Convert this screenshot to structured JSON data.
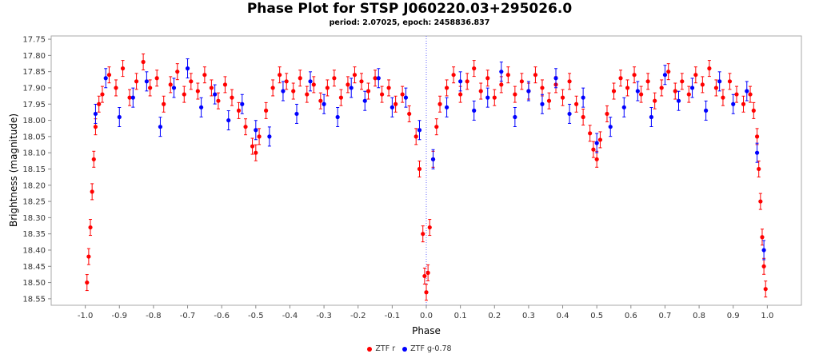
{
  "chart_data": {
    "type": "scatter",
    "title": "Phase Plot for STSP J060220.03+295026.0",
    "subtitle": "period: 2.07025, epoch: 2458836.837",
    "xlabel": "Phase",
    "ylabel": "Brightness (magnitude)",
    "xlim": [
      -1.1,
      1.1
    ],
    "ylim": [
      17.74,
      18.57
    ],
    "y_inverted": true,
    "x_ticks": [
      "-1.0",
      "-0.9",
      "-0.8",
      "-0.7",
      "-0.6",
      "-0.5",
      "-0.4",
      "-0.3",
      "-0.2",
      "-0.1",
      "0.0",
      "0.1",
      "0.2",
      "0.3",
      "0.4",
      "0.5",
      "0.6",
      "0.7",
      "0.8",
      "0.9",
      "1.0"
    ],
    "y_ticks": [
      "17.75",
      "17.80",
      "17.85",
      "17.90",
      "17.95",
      "18.00",
      "18.05",
      "18.10",
      "18.15",
      "18.20",
      "18.25",
      "18.30",
      "18.35",
      "18.40",
      "18.45",
      "18.50",
      "18.55"
    ],
    "marker_line_x": 0.0,
    "grid": false,
    "legend_position": "bottom",
    "series": [
      {
        "name": "ZTF r",
        "color": "#ff0000",
        "points": [
          [
            -0.995,
            18.5
          ],
          [
            -0.99,
            18.42
          ],
          [
            -0.985,
            18.33
          ],
          [
            -0.98,
            18.22
          ],
          [
            -0.975,
            18.12
          ],
          [
            -0.97,
            18.02
          ],
          [
            -0.96,
            17.95
          ],
          [
            -0.95,
            17.92
          ],
          [
            -0.93,
            17.86
          ],
          [
            -0.91,
            17.9
          ],
          [
            -0.89,
            17.84
          ],
          [
            -0.87,
            17.93
          ],
          [
            -0.85,
            17.88
          ],
          [
            -0.83,
            17.82
          ],
          [
            -0.81,
            17.9
          ],
          [
            -0.79,
            17.87
          ],
          [
            -0.77,
            17.95
          ],
          [
            -0.75,
            17.89
          ],
          [
            -0.73,
            17.85
          ],
          [
            -0.71,
            17.92
          ],
          [
            -0.69,
            17.88
          ],
          [
            -0.67,
            17.91
          ],
          [
            -0.65,
            17.86
          ],
          [
            -0.63,
            17.9
          ],
          [
            -0.61,
            17.94
          ],
          [
            -0.59,
            17.89
          ],
          [
            -0.57,
            17.93
          ],
          [
            -0.55,
            17.97
          ],
          [
            -0.53,
            18.02
          ],
          [
            -0.51,
            18.08
          ],
          [
            -0.5,
            18.1
          ],
          [
            -0.49,
            18.05
          ],
          [
            -0.47,
            17.97
          ],
          [
            -0.45,
            17.9
          ],
          [
            -0.43,
            17.86
          ],
          [
            -0.41,
            17.88
          ],
          [
            -0.39,
            17.91
          ],
          [
            -0.37,
            17.87
          ],
          [
            -0.35,
            17.92
          ],
          [
            -0.33,
            17.89
          ],
          [
            -0.31,
            17.94
          ],
          [
            -0.29,
            17.9
          ],
          [
            -0.27,
            17.87
          ],
          [
            -0.25,
            17.93
          ],
          [
            -0.23,
            17.89
          ],
          [
            -0.21,
            17.86
          ],
          [
            -0.19,
            17.88
          ],
          [
            -0.17,
            17.91
          ],
          [
            -0.15,
            17.87
          ],
          [
            -0.13,
            17.92
          ],
          [
            -0.11,
            17.9
          ],
          [
            -0.09,
            17.95
          ],
          [
            -0.07,
            17.92
          ],
          [
            -0.05,
            17.98
          ],
          [
            -0.03,
            18.05
          ],
          [
            -0.02,
            18.15
          ],
          [
            -0.01,
            18.35
          ],
          [
            -0.005,
            18.48
          ],
          [
            0.0,
            18.53
          ],
          [
            0.005,
            18.47
          ],
          [
            0.01,
            18.33
          ],
          [
            0.02,
            18.12
          ],
          [
            0.03,
            18.02
          ],
          [
            0.04,
            17.95
          ],
          [
            0.06,
            17.9
          ],
          [
            0.08,
            17.86
          ],
          [
            0.1,
            17.92
          ],
          [
            0.12,
            17.88
          ],
          [
            0.14,
            17.84
          ],
          [
            0.16,
            17.91
          ],
          [
            0.18,
            17.87
          ],
          [
            0.2,
            17.93
          ],
          [
            0.22,
            17.89
          ],
          [
            0.24,
            17.86
          ],
          [
            0.26,
            17.92
          ],
          [
            0.28,
            17.88
          ],
          [
            0.3,
            17.91
          ],
          [
            0.32,
            17.86
          ],
          [
            0.34,
            17.9
          ],
          [
            0.36,
            17.94
          ],
          [
            0.38,
            17.89
          ],
          [
            0.4,
            17.93
          ],
          [
            0.42,
            17.88
          ],
          [
            0.44,
            17.95
          ],
          [
            0.46,
            17.99
          ],
          [
            0.48,
            18.04
          ],
          [
            0.49,
            18.09
          ],
          [
            0.5,
            18.12
          ],
          [
            0.51,
            18.06
          ],
          [
            0.53,
            17.98
          ],
          [
            0.55,
            17.91
          ],
          [
            0.57,
            17.87
          ],
          [
            0.59,
            17.9
          ],
          [
            0.61,
            17.86
          ],
          [
            0.63,
            17.92
          ],
          [
            0.65,
            17.88
          ],
          [
            0.67,
            17.94
          ],
          [
            0.69,
            17.9
          ],
          [
            0.71,
            17.85
          ],
          [
            0.73,
            17.91
          ],
          [
            0.75,
            17.88
          ],
          [
            0.77,
            17.92
          ],
          [
            0.79,
            17.86
          ],
          [
            0.81,
            17.89
          ],
          [
            0.83,
            17.84
          ],
          [
            0.85,
            17.9
          ],
          [
            0.87,
            17.93
          ],
          [
            0.89,
            17.88
          ],
          [
            0.91,
            17.92
          ],
          [
            0.93,
            17.95
          ],
          [
            0.95,
            17.92
          ],
          [
            0.96,
            17.97
          ],
          [
            0.97,
            18.05
          ],
          [
            0.975,
            18.15
          ],
          [
            0.98,
            18.25
          ],
          [
            0.985,
            18.36
          ],
          [
            0.99,
            18.45
          ],
          [
            0.995,
            18.52
          ]
        ]
      },
      {
        "name": "ZTF g-0.78",
        "color": "#0000ff",
        "points": [
          [
            -0.97,
            17.98
          ],
          [
            -0.94,
            17.87
          ],
          [
            -0.9,
            17.99
          ],
          [
            -0.86,
            17.93
          ],
          [
            -0.82,
            17.88
          ],
          [
            -0.78,
            18.02
          ],
          [
            -0.74,
            17.9
          ],
          [
            -0.7,
            17.84
          ],
          [
            -0.66,
            17.96
          ],
          [
            -0.62,
            17.92
          ],
          [
            -0.58,
            18.0
          ],
          [
            -0.54,
            17.95
          ],
          [
            -0.5,
            18.03
          ],
          [
            -0.46,
            18.05
          ],
          [
            -0.42,
            17.91
          ],
          [
            -0.38,
            17.98
          ],
          [
            -0.34,
            17.88
          ],
          [
            -0.3,
            17.95
          ],
          [
            -0.26,
            17.99
          ],
          [
            -0.22,
            17.9
          ],
          [
            -0.18,
            17.94
          ],
          [
            -0.14,
            17.87
          ],
          [
            -0.1,
            17.96
          ],
          [
            -0.06,
            17.93
          ],
          [
            -0.02,
            18.03
          ],
          [
            0.02,
            18.12
          ],
          [
            0.06,
            17.96
          ],
          [
            0.1,
            17.88
          ],
          [
            0.14,
            17.97
          ],
          [
            0.18,
            17.93
          ],
          [
            0.22,
            17.85
          ],
          [
            0.26,
            17.99
          ],
          [
            0.3,
            17.91
          ],
          [
            0.34,
            17.95
          ],
          [
            0.38,
            17.87
          ],
          [
            0.42,
            17.98
          ],
          [
            0.46,
            17.93
          ],
          [
            0.5,
            18.07
          ],
          [
            0.54,
            18.02
          ],
          [
            0.58,
            17.96
          ],
          [
            0.62,
            17.91
          ],
          [
            0.66,
            17.99
          ],
          [
            0.7,
            17.86
          ],
          [
            0.74,
            17.94
          ],
          [
            0.78,
            17.9
          ],
          [
            0.82,
            17.97
          ],
          [
            0.86,
            17.88
          ],
          [
            0.9,
            17.95
          ],
          [
            0.94,
            17.91
          ],
          [
            0.97,
            18.1
          ],
          [
            0.99,
            18.4
          ]
        ]
      }
    ]
  }
}
